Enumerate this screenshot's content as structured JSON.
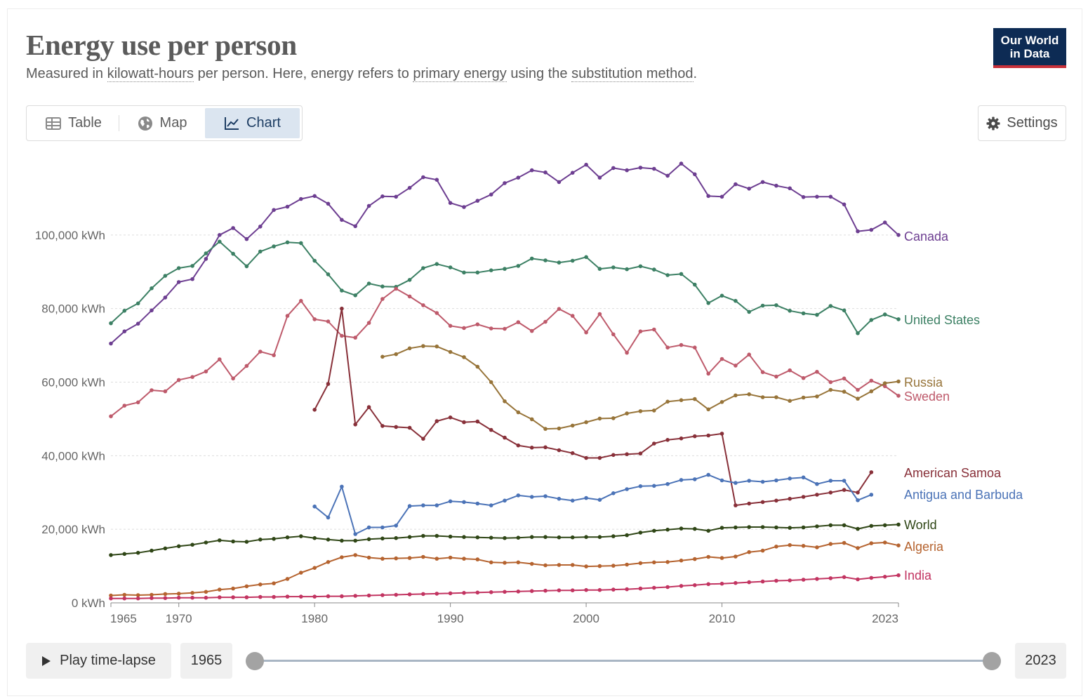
{
  "header": {
    "title": "Energy use per person",
    "subtitle_pre": "Measured in ",
    "subtitle_link1": "kilowatt-hours",
    "subtitle_mid1": " per person. Here, energy refers to ",
    "subtitle_link2": "primary energy",
    "subtitle_mid2": " using the ",
    "subtitle_link3": "substitution method",
    "subtitle_post": ".",
    "logo_line1": "Our World",
    "logo_line2": "in Data"
  },
  "toolbar": {
    "tabs": [
      {
        "label": "Table",
        "icon": "table-icon"
      },
      {
        "label": "Map",
        "icon": "globe-icon"
      },
      {
        "label": "Chart",
        "icon": "line-chart-icon",
        "active": true
      }
    ],
    "settings_label": "Settings"
  },
  "timeline": {
    "play_label": "Play time-lapse",
    "start_year": "1965",
    "end_year": "2023"
  },
  "chart_data": {
    "type": "line",
    "xlim": [
      1965,
      2023
    ],
    "ylim": [
      0,
      120000
    ],
    "x_ticks": [
      "1965",
      "1970",
      "1980",
      "1990",
      "2000",
      "2010",
      "2023"
    ],
    "x_tick_values": [
      1965,
      1970,
      1980,
      1990,
      2000,
      2010,
      2023
    ],
    "y_ticks": [
      0,
      20000,
      40000,
      60000,
      80000,
      100000
    ],
    "y_tick_labels": [
      "0 kWh",
      "20,000 kWh",
      "40,000 kWh",
      "60,000 kWh",
      "80,000 kWh",
      "100,000 kWh"
    ],
    "grid": "horizontal dashed",
    "legend": "inline labels at right",
    "series": [
      {
        "name": "Canada",
        "color": "#6d3e91",
        "start": 1965,
        "values": [
          70500,
          73800,
          75900,
          79500,
          83000,
          87200,
          88000,
          93500,
          100000,
          101900,
          98900,
          102300,
          106800,
          107700,
          109800,
          110600,
          108500,
          104100,
          102400,
          107900,
          110500,
          110400,
          112800,
          115700,
          115000,
          108700,
          107600,
          109300,
          111000,
          114100,
          115600,
          117600,
          117000,
          114400,
          116900,
          119100,
          115600,
          118200,
          117600,
          118300,
          118000,
          116100,
          119400,
          116500,
          110600,
          110400,
          113800,
          112600,
          114400,
          113400,
          112700,
          110300,
          110400,
          110400,
          108300,
          101000,
          101400,
          103400,
          100000
        ]
      },
      {
        "name": "United States",
        "color": "#3c8064",
        "start": 1965,
        "values": [
          76000,
          79400,
          81400,
          85500,
          88900,
          91000,
          91600,
          95000,
          98200,
          94900,
          91500,
          95500,
          96900,
          98000,
          97800,
          93000,
          89300,
          84900,
          83600,
          86800,
          86000,
          85900,
          87800,
          91000,
          92100,
          91200,
          89800,
          89800,
          90400,
          90800,
          91600,
          93600,
          93100,
          92500,
          93000,
          94000,
          90800,
          91200,
          90700,
          91500,
          90600,
          89100,
          89400,
          86500,
          81500,
          83500,
          82100,
          79100,
          80800,
          80900,
          79400,
          78700,
          78300,
          80700,
          79500,
          73300,
          76900,
          78400,
          77100
        ]
      },
      {
        "name": "Sweden",
        "color": "#be5a6b",
        "start": 1965,
        "values": [
          50700,
          53600,
          54500,
          57800,
          57500,
          60600,
          61400,
          62900,
          66200,
          61000,
          64400,
          68300,
          67300,
          78000,
          82100,
          77100,
          76500,
          72600,
          72100,
          76100,
          82600,
          85400,
          83300,
          80900,
          78800,
          75300,
          74700,
          75700,
          74600,
          74500,
          76300,
          73900,
          76400,
          79900,
          78000,
          73500,
          78500,
          73000,
          68000,
          73800,
          74300,
          69400,
          70100,
          69400,
          62300,
          66300,
          64500,
          67500,
          62700,
          61500,
          63200,
          61100,
          62800,
          60000,
          61000,
          57900,
          60400,
          58900,
          56300
        ]
      },
      {
        "name": "Russia",
        "color": "#977439",
        "start": 1985,
        "values": [
          66900,
          67600,
          69200,
          69800,
          69700,
          68200,
          66800,
          64200,
          60000,
          54800,
          51800,
          49900,
          47300,
          47400,
          48200,
          49100,
          50100,
          50200,
          51500,
          52100,
          52300,
          54700,
          55100,
          55400,
          52600,
          54600,
          56400,
          56700,
          55900,
          55900,
          54900,
          55800,
          56100,
          57900,
          57400,
          55500,
          57500,
          59700,
          60200
        ]
      },
      {
        "name": "American Samoa",
        "color": "#883039",
        "start": 1980,
        "values": [
          52500,
          59500,
          80000,
          48500,
          53200,
          48100,
          47800,
          47600,
          44600,
          49400,
          50400,
          49100,
          49300,
          47000,
          44900,
          42800,
          42200,
          42300,
          41500,
          40700,
          39400,
          39400,
          40200,
          40400,
          40600,
          43300,
          44300,
          44700,
          45300,
          45500,
          46000,
          26500,
          27000,
          27400,
          27800,
          28300,
          28800,
          29400,
          30000,
          30700,
          30000,
          35500
        ]
      },
      {
        "name": "Antigua and Barbuda",
        "color": "#4b73b7",
        "start": 1980,
        "values": [
          26200,
          23200,
          31600,
          18700,
          20500,
          20500,
          21000,
          26300,
          26500,
          26500,
          27600,
          27400,
          27000,
          26500,
          27800,
          29200,
          28800,
          29000,
          28300,
          27800,
          28500,
          28000,
          29800,
          30900,
          31700,
          31800,
          32300,
          33400,
          33600,
          34800,
          33300,
          32600,
          33200,
          32900,
          33300,
          33800,
          34100,
          32300,
          33200,
          33200,
          27900,
          29400
        ]
      },
      {
        "name": "World",
        "color": "#2f4616",
        "start": 1965,
        "values": [
          13000,
          13300,
          13600,
          14200,
          14800,
          15400,
          15800,
          16400,
          17000,
          16700,
          16600,
          17200,
          17400,
          17800,
          18100,
          17600,
          17200,
          16900,
          16900,
          17300,
          17500,
          17600,
          17900,
          18200,
          18200,
          18000,
          17900,
          17800,
          17700,
          17600,
          17700,
          17900,
          17900,
          17800,
          17800,
          17900,
          17900,
          18100,
          18400,
          19100,
          19600,
          19900,
          20200,
          20100,
          19600,
          20400,
          20500,
          20600,
          20600,
          20500,
          20400,
          20500,
          20800,
          21100,
          21100,
          20100,
          20900,
          21100,
          21300
        ]
      },
      {
        "name": "Algeria",
        "color": "#b5632f",
        "start": 1965,
        "values": [
          2000,
          2200,
          2100,
          2200,
          2400,
          2500,
          2700,
          3000,
          3600,
          3900,
          4500,
          5000,
          5300,
          6500,
          8200,
          9500,
          11100,
          12400,
          13000,
          12300,
          12000,
          12100,
          12200,
          12500,
          12000,
          12300,
          12000,
          11800,
          11000,
          10900,
          11000,
          10600,
          10200,
          10300,
          10300,
          9900,
          10000,
          10100,
          10400,
          10800,
          11000,
          11100,
          11500,
          11900,
          12500,
          12200,
          12600,
          13800,
          14200,
          15300,
          15700,
          15500,
          15100,
          16000,
          16300,
          14900,
          16200,
          16400,
          15600
        ]
      },
      {
        "name": "India",
        "color": "#c23461",
        "start": 1965,
        "values": [
          1200,
          1200,
          1200,
          1300,
          1300,
          1400,
          1400,
          1400,
          1500,
          1500,
          1500,
          1600,
          1600,
          1700,
          1700,
          1700,
          1800,
          1800,
          1900,
          2000,
          2100,
          2200,
          2300,
          2400,
          2500,
          2600,
          2700,
          2800,
          2900,
          3000,
          3100,
          3200,
          3300,
          3400,
          3400,
          3500,
          3500,
          3600,
          3700,
          3900,
          4100,
          4300,
          4600,
          4800,
          5100,
          5200,
          5400,
          5600,
          5800,
          6000,
          6100,
          6300,
          6500,
          6700,
          7000,
          6400,
          6800,
          7100,
          7500
        ]
      }
    ]
  }
}
